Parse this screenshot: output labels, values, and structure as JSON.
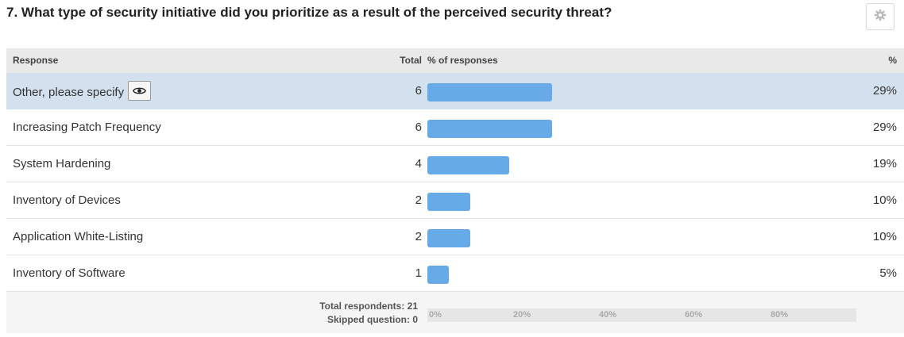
{
  "question": {
    "title": "7.  What type of security initiative did you prioritize as a result of the perceived security threat?"
  },
  "toolbar": {
    "settings_icon": "gear-icon"
  },
  "table": {
    "headers": {
      "response": "Response",
      "total": "Total",
      "percent_of_responses": "% of responses",
      "percent": "%"
    },
    "rows": [
      {
        "response": "Other, please specify",
        "total": "6",
        "percent": "29%",
        "share": 0.29,
        "has_view_button": true,
        "view_icon": "eye-icon",
        "selected": true
      },
      {
        "response": "Increasing Patch Frequency",
        "total": "6",
        "percent": "29%",
        "share": 0.29
      },
      {
        "response": "System Hardening",
        "total": "4",
        "percent": "19%",
        "share": 0.19
      },
      {
        "response": "Inventory of Devices",
        "total": "2",
        "percent": "10%",
        "share": 0.1
      },
      {
        "response": "Application White-Listing",
        "total": "2",
        "percent": "10%",
        "share": 0.1
      },
      {
        "response": "Inventory of Software",
        "total": "1",
        "percent": "5%",
        "share": 0.05
      }
    ],
    "footer": {
      "total_respondents": "Total respondents: 21",
      "skipped": "Skipped question: 0",
      "axis_ticks": [
        "0%",
        "20%",
        "40%",
        "60%",
        "80%"
      ]
    }
  },
  "colors": {
    "bar": "#66aae8",
    "selected_row": "#d3e1ee",
    "header_bg": "#e9e9e9"
  }
}
